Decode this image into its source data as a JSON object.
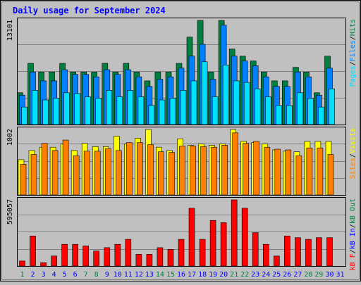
{
  "title": "Daily usage for September 2024",
  "colors": {
    "background": "#C0C0C0",
    "hits": "#008040",
    "files": "#0080FF",
    "pages": "#00E0FF",
    "visits": "#FFFF00",
    "sites": "#FF8000",
    "kbin": "#0000FF",
    "kbout": "#008040",
    "kbf": "#FF0000",
    "weekend_label": "#008040",
    "weekday_label": "#0000FF"
  },
  "chart_data": [
    {
      "type": "bar",
      "title": "Hits / Files / Pages",
      "y_max_label": "13101",
      "ylim": [
        0,
        13101
      ],
      "legend": [
        {
          "label": "Pages",
          "color": "#00E0FF"
        },
        {
          "label": "/",
          "color": "#000000"
        },
        {
          "label": "Files",
          "color": "#0080FF"
        },
        {
          "label": "/",
          "color": "#000000"
        },
        {
          "label": "Hits",
          "color": "#008040"
        }
      ],
      "categories": [
        "1",
        "2",
        "3",
        "4",
        "5",
        "6",
        "7",
        "8",
        "9",
        "10",
        "11",
        "12",
        "13",
        "14",
        "15",
        "16",
        "17",
        "18",
        "19",
        "20",
        "21",
        "22",
        "23",
        "24",
        "25",
        "26",
        "27",
        "28",
        "29",
        "30",
        "31"
      ],
      "series": [
        {
          "name": "Hits",
          "color": "#008040",
          "values": [
            4000,
            7700,
            6600,
            6600,
            7700,
            6600,
            6600,
            6600,
            7700,
            6600,
            7700,
            6600,
            5500,
            6600,
            6600,
            7700,
            11000,
            13100,
            6600,
            13100,
            9500,
            8600,
            8000,
            6600,
            5500,
            5500,
            7200,
            6600,
            4000,
            8600,
            0
          ]
        },
        {
          "name": "Files",
          "color": "#0080FF",
          "values": [
            3700,
            6600,
            5500,
            5500,
            6900,
            6300,
            6300,
            6000,
            6900,
            6300,
            6900,
            6000,
            4800,
            5700,
            6000,
            7100,
            8600,
            10100,
            5700,
            12500,
            8600,
            8000,
            7400,
            6000,
            4800,
            4800,
            6600,
            6000,
            3700,
            7100,
            0
          ]
        },
        {
          "name": "Pages",
          "color": "#00E0FF",
          "values": [
            2200,
            4300,
            3100,
            3300,
            4000,
            3900,
            3500,
            3300,
            4300,
            3500,
            4300,
            3500,
            2400,
            3100,
            3300,
            4300,
            5500,
            7900,
            3500,
            7500,
            5500,
            5300,
            4500,
            3500,
            2400,
            2400,
            4000,
            3300,
            2200,
            4500,
            0
          ]
        }
      ]
    },
    {
      "type": "bar",
      "title": "Sites / Visits",
      "y_max_label": "1002",
      "ylim": [
        0,
        1002
      ],
      "legend": [
        {
          "label": "Sites",
          "color": "#FF8000"
        },
        {
          "label": "/",
          "color": "#000000"
        },
        {
          "label": "Visits",
          "color": "#FFFF00"
        }
      ],
      "categories": [
        "1",
        "2",
        "3",
        "4",
        "5",
        "6",
        "7",
        "8",
        "9",
        "10",
        "11",
        "12",
        "13",
        "14",
        "15",
        "16",
        "17",
        "18",
        "19",
        "20",
        "21",
        "22",
        "23",
        "24",
        "25",
        "26",
        "27",
        "28",
        "29",
        "30",
        "31"
      ],
      "series": [
        {
          "name": "Visits",
          "color": "#FFFF00",
          "values": [
            540,
            680,
            730,
            730,
            780,
            680,
            790,
            740,
            740,
            900,
            780,
            870,
            1002,
            730,
            680,
            860,
            760,
            780,
            760,
            780,
            1002,
            820,
            800,
            780,
            690,
            670,
            660,
            820,
            820,
            820,
            0
          ]
        },
        {
          "name": "Sites",
          "color": "#FF8000",
          "values": [
            470,
            620,
            790,
            680,
            840,
            600,
            670,
            670,
            710,
            680,
            800,
            800,
            770,
            660,
            650,
            750,
            750,
            740,
            730,
            760,
            950,
            790,
            820,
            730,
            700,
            690,
            600,
            720,
            720,
            620,
            0
          ]
        }
      ]
    },
    {
      "type": "bar",
      "title": "KBytes In / Out / F",
      "y_max_label": "595057",
      "ylim": [
        0,
        595057
      ],
      "legend": [
        {
          "label": "kB F",
          "color": "#FF0000"
        },
        {
          "label": "/",
          "color": "#000000"
        },
        {
          "label": "kB In",
          "color": "#0000FF"
        },
        {
          "label": "/",
          "color": "#000000"
        },
        {
          "label": "kB Out",
          "color": "#008040"
        }
      ],
      "categories": [
        "1",
        "2",
        "3",
        "4",
        "5",
        "6",
        "7",
        "8",
        "9",
        "10",
        "11",
        "12",
        "13",
        "14",
        "15",
        "16",
        "17",
        "18",
        "19",
        "20",
        "21",
        "22",
        "23",
        "24",
        "25",
        "26",
        "27",
        "28",
        "29",
        "30",
        "31"
      ],
      "series": [
        {
          "name": "kB F",
          "color": "#FF0000",
          "values": [
            45000,
            270000,
            30000,
            90000,
            195000,
            195000,
            180000,
            135000,
            165000,
            195000,
            240000,
            105000,
            105000,
            165000,
            150000,
            240000,
            520000,
            240000,
            410000,
            390000,
            595057,
            520000,
            300000,
            195000,
            90000,
            270000,
            255000,
            240000,
            255000,
            255000,
            0
          ]
        }
      ]
    }
  ],
  "x_labels": [
    {
      "day": "1",
      "weekend": true
    },
    {
      "day": "2",
      "weekend": false
    },
    {
      "day": "3",
      "weekend": false
    },
    {
      "day": "4",
      "weekend": false
    },
    {
      "day": "5",
      "weekend": false
    },
    {
      "day": "6",
      "weekend": false
    },
    {
      "day": "7",
      "weekend": true
    },
    {
      "day": "8",
      "weekend": true
    },
    {
      "day": "9",
      "weekend": false
    },
    {
      "day": "10",
      "weekend": false
    },
    {
      "day": "11",
      "weekend": false
    },
    {
      "day": "12",
      "weekend": false
    },
    {
      "day": "13",
      "weekend": false
    },
    {
      "day": "14",
      "weekend": true
    },
    {
      "day": "15",
      "weekend": true
    },
    {
      "day": "16",
      "weekend": false
    },
    {
      "day": "17",
      "weekend": false
    },
    {
      "day": "18",
      "weekend": false
    },
    {
      "day": "19",
      "weekend": false
    },
    {
      "day": "20",
      "weekend": false
    },
    {
      "day": "21",
      "weekend": true
    },
    {
      "day": "22",
      "weekend": true
    },
    {
      "day": "23",
      "weekend": false
    },
    {
      "day": "24",
      "weekend": false
    },
    {
      "day": "25",
      "weekend": false
    },
    {
      "day": "26",
      "weekend": false
    },
    {
      "day": "27",
      "weekend": false
    },
    {
      "day": "28",
      "weekend": true
    },
    {
      "day": "29",
      "weekend": true
    },
    {
      "day": "30",
      "weekend": false
    },
    {
      "day": "31",
      "weekend": false
    }
  ]
}
